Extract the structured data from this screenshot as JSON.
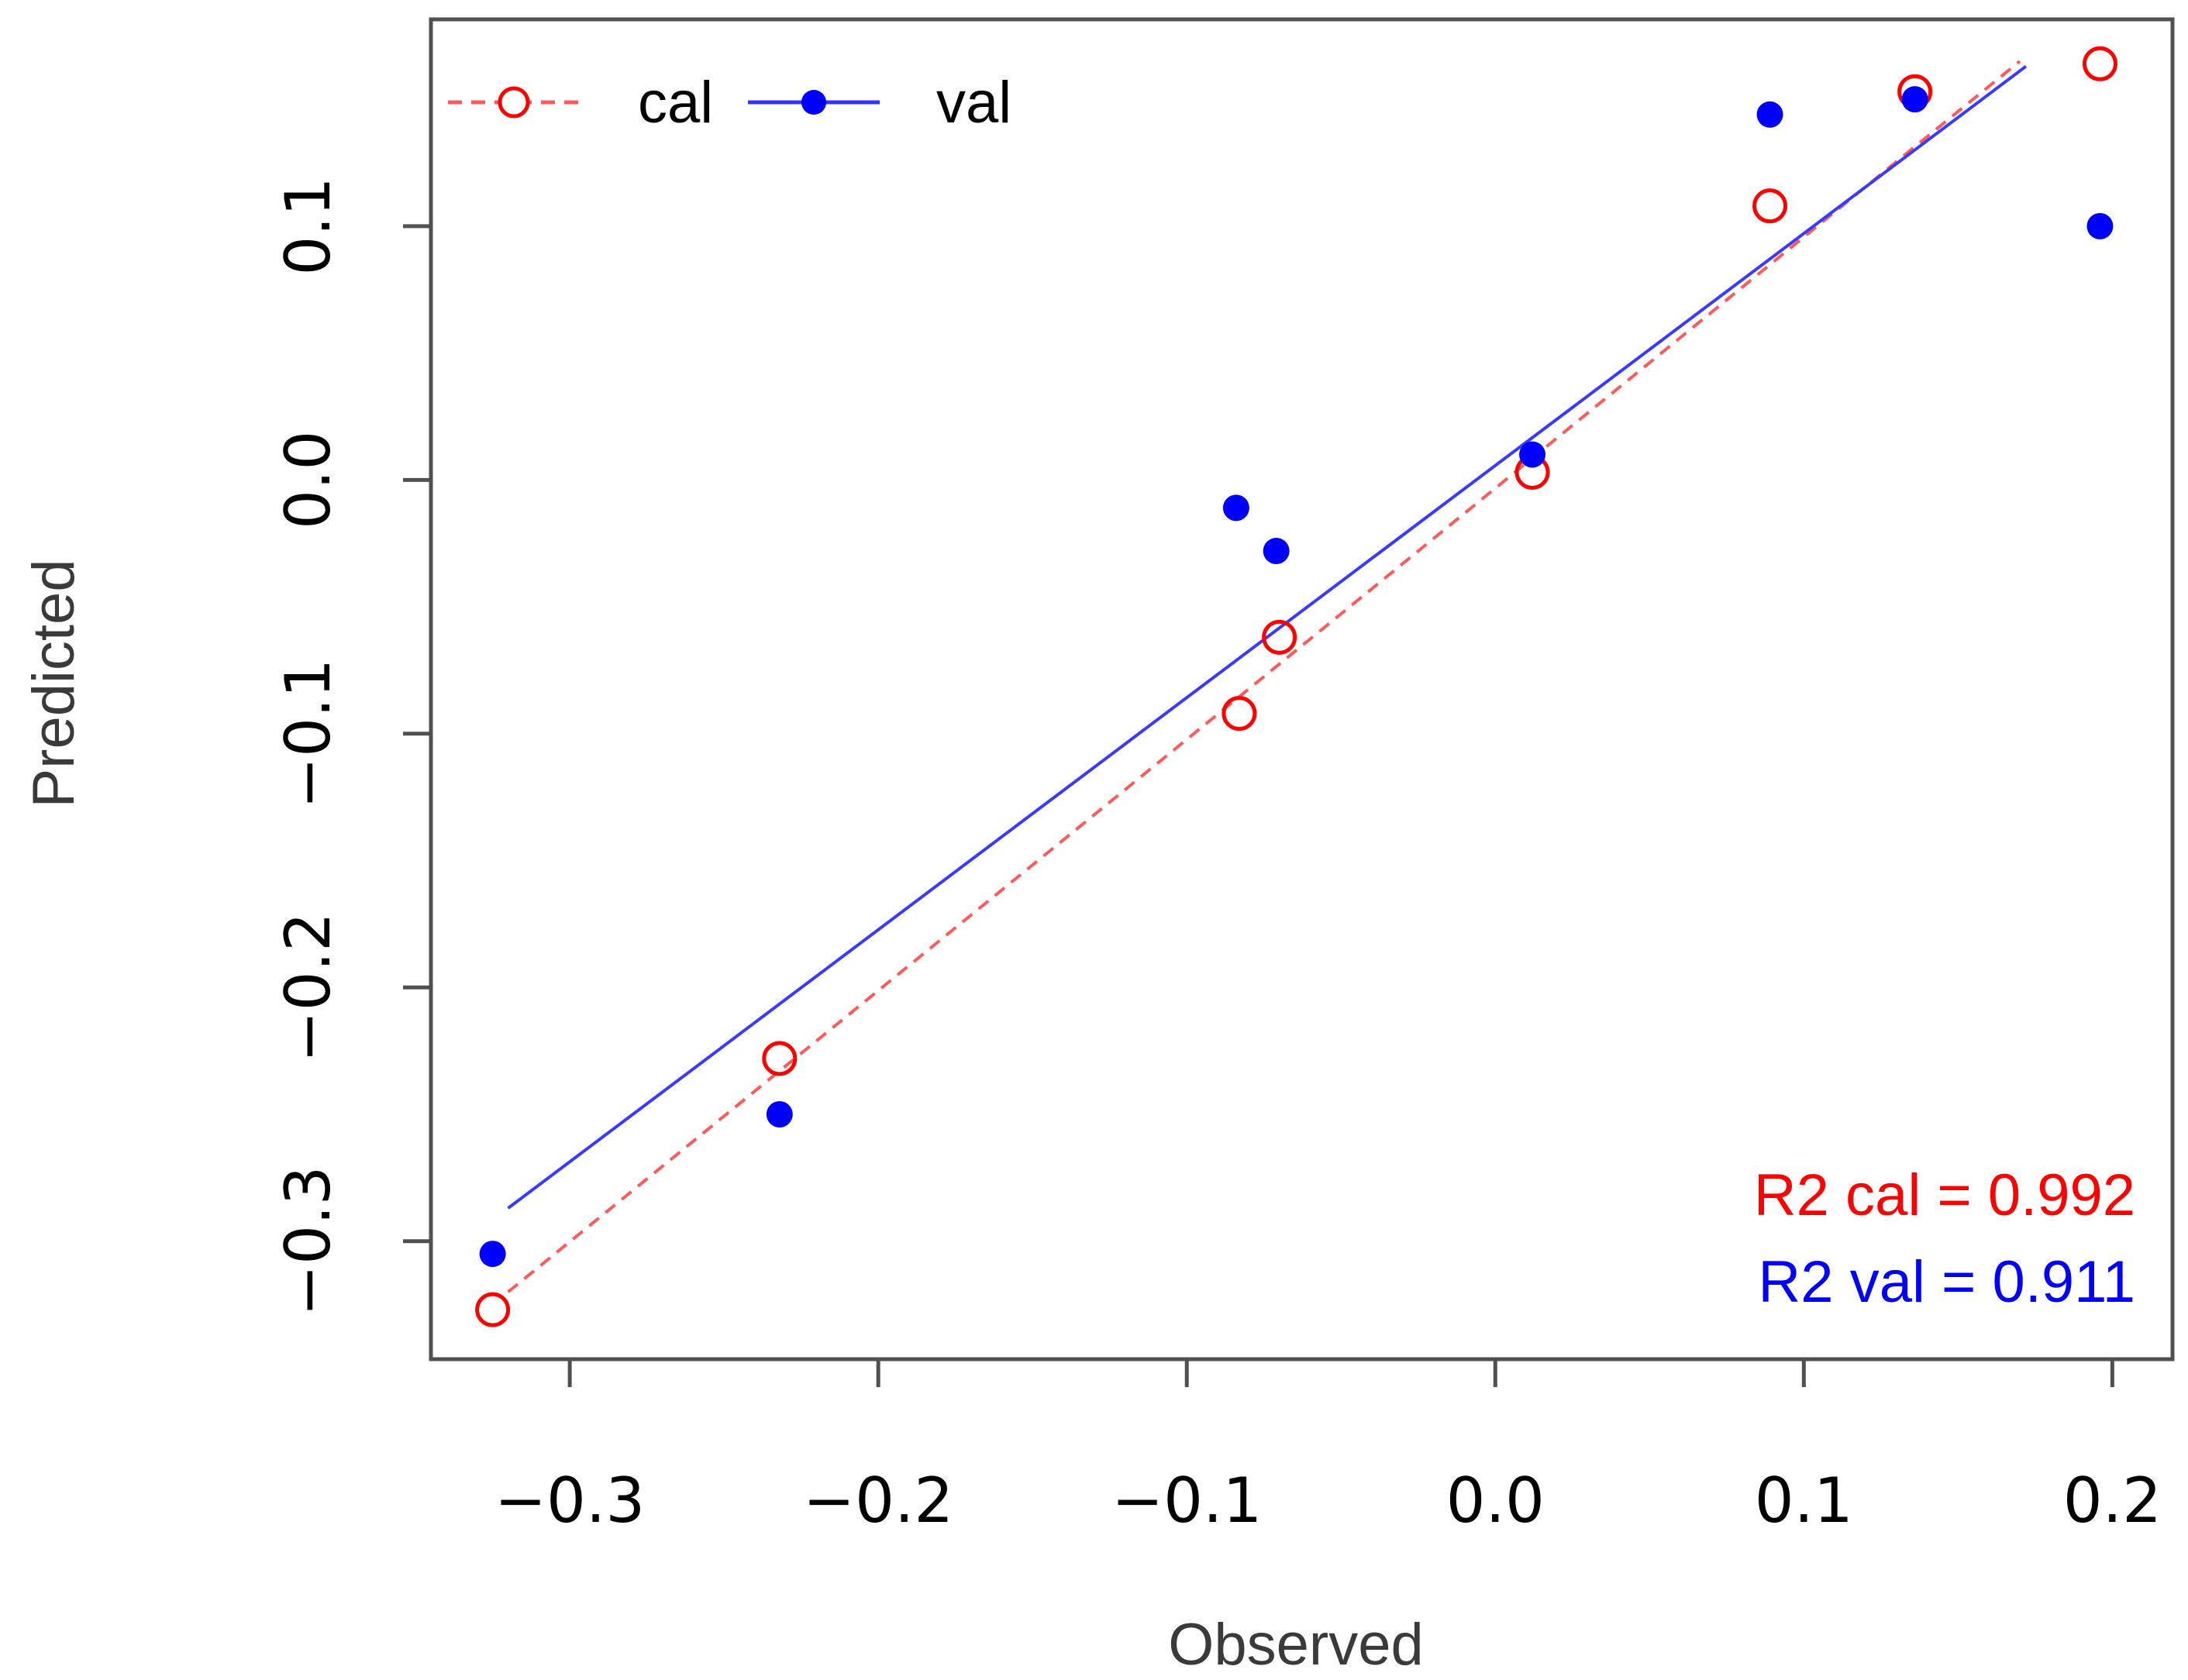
{
  "chart_data": {
    "type": "scatter",
    "title": "",
    "xlabel": "Observed",
    "ylabel": "Predicted",
    "xlim": [
      -0.345,
      0.2195
    ],
    "ylim": [
      -0.3465,
      0.1815
    ],
    "x_ticks": [
      -0.3,
      -0.2,
      -0.1,
      0.0,
      0.1,
      0.2
    ],
    "x_tick_labels": [
      "−0.3",
      "−0.2",
      "−0.1",
      "0.0",
      "0.1",
      "0.2"
    ],
    "y_ticks": [
      -0.3,
      -0.2,
      -0.1,
      0.0,
      0.1
    ],
    "y_tick_labels": [
      "−0.3",
      "−0.2",
      "−0.1",
      "0.0",
      "0.1"
    ],
    "grid": false,
    "legend": {
      "position": "top-left",
      "entries": [
        {
          "label": "cal",
          "color": "#ff0000",
          "marker": "open-circle",
          "line": "dashed"
        },
        {
          "label": "val",
          "color": "#0000ff",
          "marker": "filled-circle",
          "line": "solid"
        }
      ]
    },
    "series": [
      {
        "name": "cal",
        "color": "#ff0000",
        "marker": "open-circle",
        "points": [
          {
            "x": -0.325,
            "y": -0.327
          },
          {
            "x": -0.232,
            "y": -0.228
          },
          {
            "x": -0.083,
            "y": -0.092
          },
          {
            "x": -0.07,
            "y": -0.062
          },
          {
            "x": 0.012,
            "y": 0.003
          },
          {
            "x": 0.089,
            "y": 0.108
          },
          {
            "x": 0.136,
            "y": 0.153
          },
          {
            "x": 0.196,
            "y": 0.164
          }
        ],
        "fit_line": {
          "x": [
            -0.32,
            0.17
          ],
          "y": [
            -0.32,
            0.165
          ],
          "style": "dashed"
        }
      },
      {
        "name": "val",
        "color": "#0000ff",
        "marker": "filled-circle",
        "points": [
          {
            "x": -0.325,
            "y": -0.305
          },
          {
            "x": -0.232,
            "y": -0.25
          },
          {
            "x": -0.084,
            "y": -0.011
          },
          {
            "x": -0.071,
            "y": -0.028
          },
          {
            "x": 0.012,
            "y": 0.01
          },
          {
            "x": 0.089,
            "y": 0.144
          },
          {
            "x": 0.136,
            "y": 0.15
          },
          {
            "x": 0.196,
            "y": 0.1
          }
        ],
        "fit_line": {
          "x": [
            -0.32,
            0.172
          ],
          "y": [
            -0.287,
            0.163
          ],
          "style": "solid"
        }
      }
    ],
    "annotations": [
      {
        "text": "R2 cal =  0.992",
        "color": "#ff0000",
        "position": "bottom-right"
      },
      {
        "text": "R2 val =  0.911",
        "color": "#0000ff",
        "position": "bottom-right"
      }
    ]
  }
}
